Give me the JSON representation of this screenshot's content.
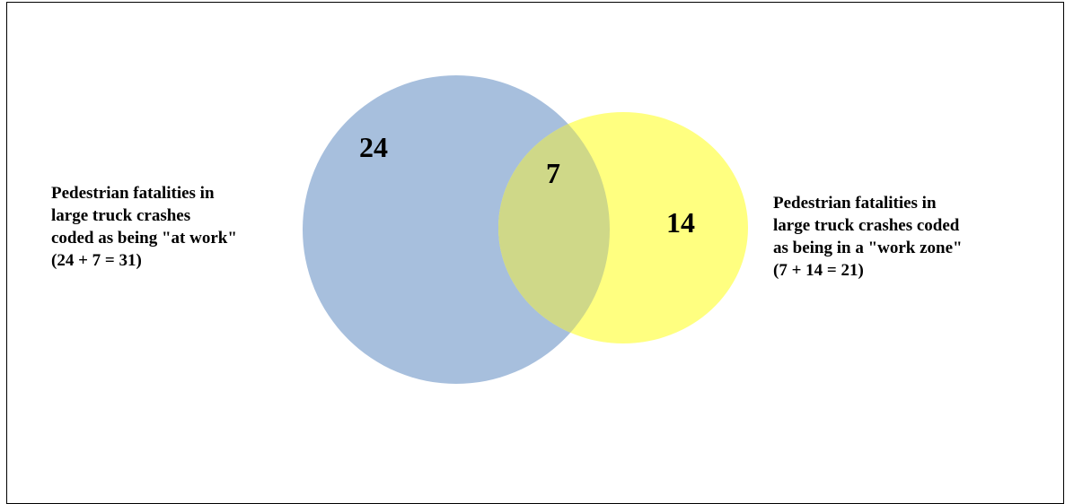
{
  "diagram": {
    "type": "venn",
    "sets": [
      {
        "id": "at-work",
        "only_count": "24",
        "color": "#95b3d7",
        "label_lines": [
          "Pedestrian  fatalities in",
          "large  truck crashes",
          "coded as being \"at work\"",
          "(24 + 7 = 31)"
        ]
      },
      {
        "id": "work-zone",
        "only_count": "14",
        "color": "#ffff66",
        "label_lines": [
          "Pedestrian fatalities in",
          "large truck crashes coded",
          "as being in a \"work zone\"",
          "(7 + 14 = 21)"
        ]
      }
    ],
    "overlap_count": "7",
    "overlap_color": "#cfd888"
  }
}
